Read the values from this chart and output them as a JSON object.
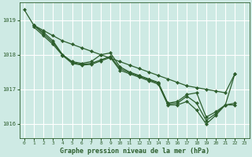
{
  "title": "Graphe pression niveau de la mer (hPa)",
  "bg_color": "#ceeae4",
  "grid_color": "#ffffff",
  "line_color": "#2d5e2d",
  "marker_color": "#2d5e2d",
  "xlim": [
    -0.5,
    23.5
  ],
  "ylim": [
    1015.6,
    1019.5
  ],
  "yticks": [
    1016,
    1017,
    1018,
    1019
  ],
  "xticks": [
    0,
    1,
    2,
    3,
    4,
    5,
    6,
    7,
    8,
    9,
    10,
    11,
    12,
    13,
    14,
    15,
    16,
    17,
    18,
    19,
    20,
    21,
    22,
    23
  ],
  "lines": [
    {
      "x": [
        0,
        1,
        2,
        3,
        4,
        5,
        6,
        7,
        8,
        9,
        10,
        11,
        12,
        13,
        14,
        15,
        16,
        17,
        18,
        19,
        20,
        21,
        22
      ],
      "y": [
        1019.3,
        1018.85,
        1018.7,
        1018.55,
        1018.4,
        1018.3,
        1018.2,
        1018.1,
        1018.0,
        1017.9,
        1017.8,
        1017.7,
        1017.6,
        1017.5,
        1017.4,
        1017.3,
        1017.2,
        1017.1,
        1017.05,
        1017.0,
        1016.95,
        1016.9,
        1017.45
      ]
    },
    {
      "x": [
        1,
        2,
        3,
        4,
        5,
        6,
        7,
        8,
        9,
        10,
        11,
        12,
        13,
        14,
        15,
        16,
        17,
        18,
        19,
        20,
        21,
        22
      ],
      "y": [
        1018.85,
        1018.65,
        1018.4,
        1018.0,
        1017.8,
        1017.75,
        1017.8,
        1018.0,
        1018.05,
        1017.65,
        1017.5,
        1017.4,
        1017.3,
        1017.2,
        1016.6,
        1016.65,
        1016.85,
        1016.9,
        1016.2,
        1016.35,
        1016.55,
        1017.45
      ]
    },
    {
      "x": [
        1,
        2,
        3,
        4,
        5,
        6,
        7,
        8,
        9,
        10,
        11,
        12,
        13,
        14,
        15,
        16,
        17,
        18,
        19,
        20,
        21,
        22
      ],
      "y": [
        1018.85,
        1018.6,
        1018.35,
        1018.0,
        1017.78,
        1017.72,
        1017.75,
        1017.85,
        1017.95,
        1017.6,
        1017.48,
        1017.38,
        1017.28,
        1017.18,
        1016.58,
        1016.6,
        1016.8,
        1016.6,
        1016.1,
        1016.3,
        1016.55,
        1016.6
      ]
    },
    {
      "x": [
        1,
        2,
        3,
        4,
        5,
        6,
        7,
        8,
        9,
        10,
        11,
        12,
        13,
        14,
        15,
        16,
        17,
        18,
        19,
        20,
        21,
        22
      ],
      "y": [
        1018.8,
        1018.55,
        1018.3,
        1017.98,
        1017.75,
        1017.7,
        1017.72,
        1017.82,
        1017.92,
        1017.55,
        1017.45,
        1017.35,
        1017.25,
        1017.15,
        1016.55,
        1016.55,
        1016.65,
        1016.4,
        1016.0,
        1016.25,
        1016.55,
        1016.55
      ]
    }
  ]
}
